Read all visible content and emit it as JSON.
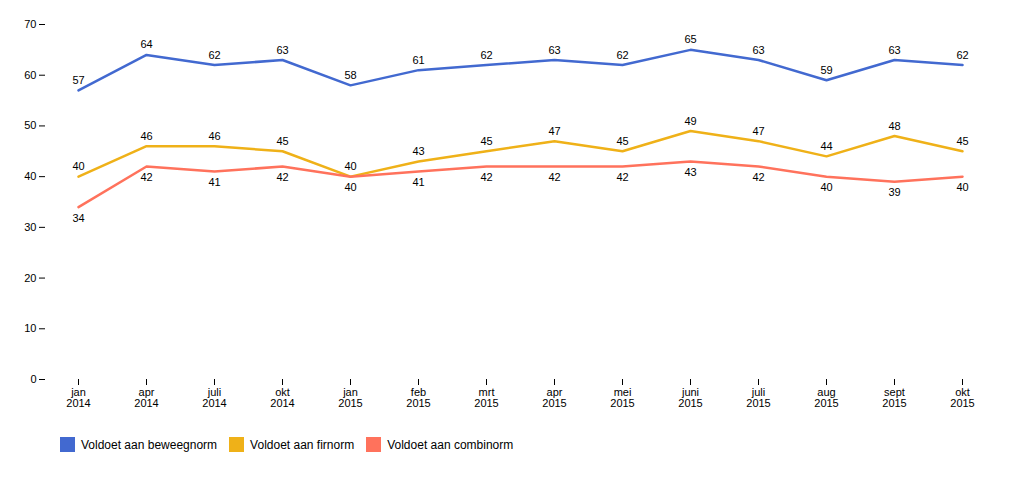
{
  "chart_data": {
    "type": "line",
    "categories": [
      "jan\n2014",
      "apr\n2014",
      "juli\n2014",
      "okt\n2014",
      "jan\n2015",
      "feb\n2015",
      "mrt\n2015",
      "apr\n2015",
      "mei\n2015",
      "juni\n2015",
      "juli\n2015",
      "aug\n2015",
      "sept\n2015",
      "okt\n2015"
    ],
    "series": [
      {
        "name": "Voldoet aan beweegnorm",
        "values": [
          57,
          64,
          62,
          63,
          58,
          61,
          62,
          63,
          62,
          65,
          63,
          59,
          63,
          62
        ]
      },
      {
        "name": "Voldoet aan firnorm",
        "values": [
          40,
          46,
          46,
          45,
          40,
          43,
          45,
          47,
          45,
          49,
          47,
          44,
          48,
          45
        ]
      },
      {
        "name": "Voldoet aan combinorm",
        "values": [
          34,
          42,
          41,
          42,
          40,
          41,
          42,
          42,
          42,
          43,
          42,
          40,
          39,
          40
        ]
      }
    ],
    "ylim": [
      0,
      70
    ],
    "yticks": [
      0,
      10,
      20,
      30,
      40,
      50,
      60,
      70
    ],
    "grid": false,
    "legend": "bottom",
    "data_labels": true
  }
}
